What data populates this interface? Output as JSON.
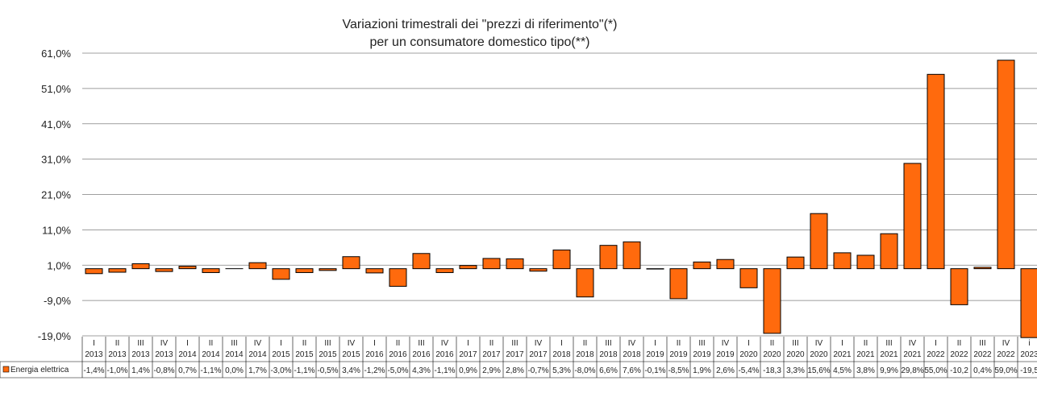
{
  "chart_data": {
    "type": "bar",
    "title": "Variazioni trimestrali dei \"prezzi di riferimento\"(*)",
    "subtitle": "per un consumatore domestico tipo(**)",
    "ylim": [
      -19,
      61
    ],
    "yticks": [
      "61,0%",
      "51,0%",
      "41,0%",
      "31,0%",
      "21,0%",
      "11,0%",
      "1,0%",
      "-9,0%",
      "-19,0%"
    ],
    "ytick_values": [
      61,
      51,
      41,
      31,
      21,
      11,
      1,
      -9,
      -19
    ],
    "grid": true,
    "bar_color": "#ff6a0d",
    "categories": [
      [
        "I",
        "2013"
      ],
      [
        "II",
        "2013"
      ],
      [
        "III",
        "2013"
      ],
      [
        "IV",
        "2013"
      ],
      [
        "I",
        "2014"
      ],
      [
        "II",
        "2014"
      ],
      [
        "III",
        "2014"
      ],
      [
        "IV",
        "2014"
      ],
      [
        "I",
        "2015"
      ],
      [
        "II",
        "2015"
      ],
      [
        "III",
        "2015"
      ],
      [
        "IV",
        "2015"
      ],
      [
        "I",
        "2016"
      ],
      [
        "II",
        "2016"
      ],
      [
        "III",
        "2016"
      ],
      [
        "IV",
        "2016"
      ],
      [
        "I",
        "2017"
      ],
      [
        "II",
        "2017"
      ],
      [
        "III",
        "2017"
      ],
      [
        "IV",
        "2017"
      ],
      [
        "I",
        "2018"
      ],
      [
        "II",
        "2018"
      ],
      [
        "III",
        "2018"
      ],
      [
        "IV",
        "2018"
      ],
      [
        "I",
        "2019"
      ],
      [
        "II",
        "2019"
      ],
      [
        "III",
        "2019"
      ],
      [
        "IV",
        "2019"
      ],
      [
        "I",
        "2020"
      ],
      [
        "II",
        "2020"
      ],
      [
        "III",
        "2020"
      ],
      [
        "IV",
        "2020"
      ],
      [
        "I",
        "2021"
      ],
      [
        "II",
        "2021"
      ],
      [
        "III",
        "2021"
      ],
      [
        "IV",
        "2021"
      ],
      [
        "I",
        "2022"
      ],
      [
        "II",
        "2022"
      ],
      [
        "III",
        "2022"
      ],
      [
        "IV",
        "2022"
      ],
      [
        "i",
        "2023"
      ]
    ],
    "series": [
      {
        "name": "Energia elettrica",
        "values": [
          -1.4,
          -1.0,
          1.4,
          -0.8,
          0.7,
          -1.1,
          0.0,
          1.7,
          -3.0,
          -1.1,
          -0.5,
          3.4,
          -1.2,
          -5.0,
          4.3,
          -1.1,
          0.9,
          2.9,
          2.8,
          -0.7,
          5.3,
          -8.0,
          6.6,
          7.6,
          -0.1,
          -8.5,
          1.9,
          2.6,
          -5.4,
          -18.3,
          3.3,
          15.6,
          4.5,
          3.8,
          9.9,
          29.8,
          55.0,
          -10.2,
          0.4,
          59.0,
          -19.5
        ],
        "labels": [
          "-1,4%",
          "-1,0%",
          "1,4%",
          "-0,8%",
          "0,7%",
          "-1,1%",
          "0,0%",
          "1,7%",
          "-3,0%",
          "-1,1%",
          "-0,5%",
          "3,4%",
          "-1,2%",
          "-5,0%",
          "4,3%",
          "-1,1%",
          "0,9%",
          "2,9%",
          "2,8%",
          "-0,7%",
          "5,3%",
          "-8,0%",
          "6,6%",
          "7,6%",
          "-0,1%",
          "-8,5%",
          "1,9%",
          "2,6%",
          "-5,4%",
          "-18,3",
          "3,3%",
          "15,6%",
          "4,5%",
          "3,8%",
          "9,9%",
          "29,8%",
          "55,0%",
          "-10,2",
          "0,4%",
          "59,0%",
          "-19,5"
        ]
      }
    ]
  }
}
